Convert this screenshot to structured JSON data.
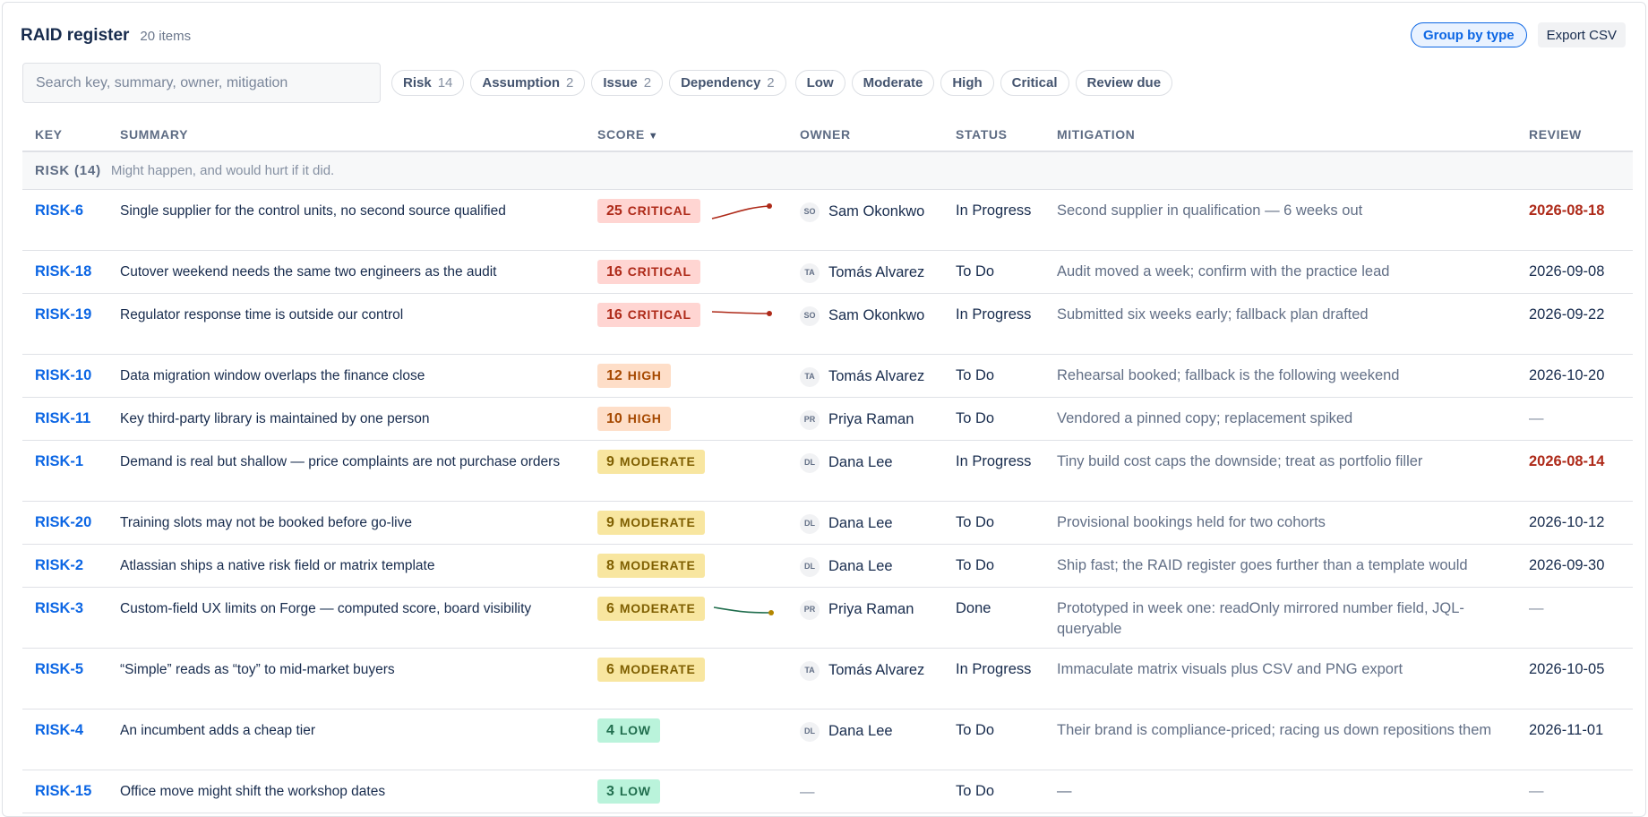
{
  "header": {
    "title": "RAID register",
    "item_count": "20 items"
  },
  "actions": {
    "group_by": "Group by type",
    "export": "Export CSV"
  },
  "search": {
    "placeholder": "Search key, summary, owner, mitigation",
    "value": ""
  },
  "type_filters": [
    {
      "label": "Risk",
      "count": "14"
    },
    {
      "label": "Assumption",
      "count": "2"
    },
    {
      "label": "Issue",
      "count": "2"
    },
    {
      "label": "Dependency",
      "count": "2"
    }
  ],
  "severity_filters": [
    "Low",
    "Moderate",
    "High",
    "Critical",
    "Review due"
  ],
  "columns": {
    "key": "KEY",
    "summary": "SUMMARY",
    "score": "SCORE",
    "sort_indicator": "▼",
    "owner": "OWNER",
    "status": "STATUS",
    "mitigation": "MITIGATION",
    "review": "REVIEW"
  },
  "group": {
    "label": "RISK (14)",
    "description": "Might happen, and would hurt if it did."
  },
  "colors": {
    "critical_trend": "#ae2a19",
    "low_trend": "#216e4e",
    "moderate_trend": "#b38600"
  },
  "rows": [
    {
      "key": "RISK-6",
      "summary": "Single supplier for the control units, no second source qualified",
      "score": "25",
      "level": "CRITICAL",
      "level_class": "critical",
      "trend": "up-critical",
      "owner_initials": "SO",
      "owner": "Sam Okonkwo",
      "status": "In Progress",
      "mitigation": "Second supplier in qualification — 6 weeks out",
      "review": "2026-08-18",
      "review_overdue": true,
      "height": 68
    },
    {
      "key": "RISK-18",
      "summary": "Cutover weekend needs the same two engineers as the audit",
      "score": "16",
      "level": "CRITICAL",
      "level_class": "critical",
      "trend": "",
      "owner_initials": "TA",
      "owner": "Tomás Alvarez",
      "status": "To Do",
      "mitigation": "Audit moved a week; confirm with the practice lead",
      "review": "2026-09-08",
      "review_overdue": false,
      "height": 48
    },
    {
      "key": "RISK-19",
      "summary": "Regulator response time is outside our control",
      "score": "16",
      "level": "CRITICAL",
      "level_class": "critical",
      "trend": "flat-critical",
      "owner_initials": "SO",
      "owner": "Sam Okonkwo",
      "status": "In Progress",
      "mitigation": "Submitted six weeks early; fallback plan drafted",
      "review": "2026-09-22",
      "review_overdue": false,
      "height": 68
    },
    {
      "key": "RISK-10",
      "summary": "Data migration window overlaps the finance close",
      "score": "12",
      "level": "HIGH",
      "level_class": "high",
      "trend": "",
      "owner_initials": "TA",
      "owner": "Tomás Alvarez",
      "status": "To Do",
      "mitigation": "Rehearsal booked; fallback is the following weekend",
      "review": "2026-10-20",
      "review_overdue": false,
      "height": 48
    },
    {
      "key": "RISK-11",
      "summary": "Key third-party library is maintained by one person",
      "score": "10",
      "level": "HIGH",
      "level_class": "high",
      "trend": "",
      "owner_initials": "PR",
      "owner": "Priya Raman",
      "status": "To Do",
      "mitigation": "Vendored a pinned copy; replacement spiked",
      "review": "—",
      "review_overdue": false,
      "height": 48
    },
    {
      "key": "RISK-1",
      "summary": "Demand is real but shallow — price complaints are not purchase orders",
      "score": "9",
      "level": "MODERATE",
      "level_class": "moderate",
      "trend": "",
      "owner_initials": "DL",
      "owner": "Dana Lee",
      "status": "In Progress",
      "mitigation": "Tiny build cost caps the downside; treat as portfolio filler",
      "review": "2026-08-14",
      "review_overdue": true,
      "height": 68
    },
    {
      "key": "RISK-20",
      "summary": "Training slots may not be booked before go-live",
      "score": "9",
      "level": "MODERATE",
      "level_class": "moderate",
      "trend": "",
      "owner_initials": "DL",
      "owner": "Dana Lee",
      "status": "To Do",
      "mitigation": "Provisional bookings held for two cohorts",
      "review": "2026-10-12",
      "review_overdue": false,
      "height": 48
    },
    {
      "key": "RISK-2",
      "summary": "Atlassian ships a native risk field or matrix template",
      "score": "8",
      "level": "MODERATE",
      "level_class": "moderate",
      "trend": "",
      "owner_initials": "DL",
      "owner": "Dana Lee",
      "status": "To Do",
      "mitigation": "Ship fast; the RAID register goes further than a template would",
      "review": "2026-09-30",
      "review_overdue": false,
      "height": 48
    },
    {
      "key": "RISK-3",
      "summary": "Custom-field UX limits on Forge — computed score, board visibility",
      "score": "6",
      "level": "MODERATE",
      "level_class": "moderate",
      "trend": "down-moderate",
      "owner_initials": "PR",
      "owner": "Priya Raman",
      "status": "Done",
      "mitigation": "Prototyped in week one: readOnly mirrored number field, JQL-queryable",
      "review": "—",
      "review_overdue": false,
      "height": 68
    },
    {
      "key": "RISK-5",
      "summary": "“Simple” reads as “toy” to mid-market buyers",
      "score": "6",
      "level": "MODERATE",
      "level_class": "moderate",
      "trend": "",
      "owner_initials": "TA",
      "owner": "Tomás Alvarez",
      "status": "In Progress",
      "mitigation": "Immaculate matrix visuals plus CSV and PNG export",
      "review": "2026-10-05",
      "review_overdue": false,
      "height": 68
    },
    {
      "key": "RISK-4",
      "summary": "An incumbent adds a cheap tier",
      "score": "4",
      "level": "LOW",
      "level_class": "low",
      "trend": "",
      "owner_initials": "DL",
      "owner": "Dana Lee",
      "status": "To Do",
      "mitigation": "Their brand is compliance-priced; racing us down repositions them",
      "review": "2026-11-01",
      "review_overdue": false,
      "height": 68
    },
    {
      "key": "RISK-15",
      "summary": "Office move might shift the workshop dates",
      "score": "3",
      "level": "LOW",
      "level_class": "low",
      "trend": "",
      "owner_initials": "",
      "owner": "—",
      "status": "To Do",
      "mitigation": "—",
      "review": "—",
      "review_overdue": false,
      "height": 48
    }
  ]
}
